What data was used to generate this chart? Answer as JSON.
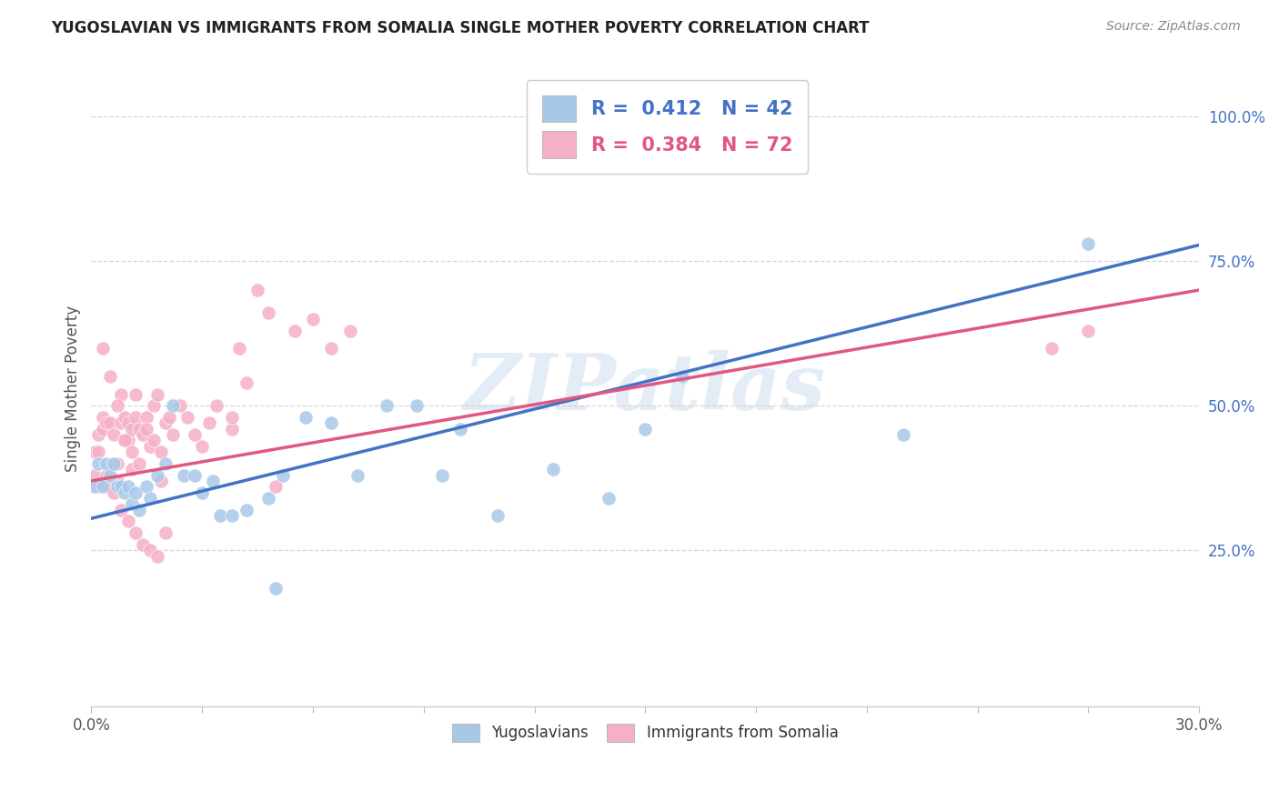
{
  "title": "YUGOSLAVIAN VS IMMIGRANTS FROM SOMALIA SINGLE MOTHER POVERTY CORRELATION CHART",
  "source": "Source: ZipAtlas.com",
  "ylabel": "Single Mother Poverty",
  "legend_label1": "Yugoslavians",
  "legend_label2": "Immigrants from Somalia",
  "R1": 0.412,
  "N1": 42,
  "R2": 0.384,
  "N2": 72,
  "color1": "#a8c8e8",
  "color2": "#f5b0c8",
  "line_color1": "#4472c4",
  "line_color2": "#e05880",
  "watermark": "ZIPatlas",
  "xmin": 0.0,
  "xmax": 0.3,
  "ymin": -0.02,
  "ymax": 1.08,
  "yugoslav_x": [
    0.001,
    0.002,
    0.003,
    0.004,
    0.005,
    0.006,
    0.007,
    0.008,
    0.009,
    0.01,
    0.011,
    0.012,
    0.013,
    0.015,
    0.016,
    0.018,
    0.02,
    0.022,
    0.025,
    0.028,
    0.03,
    0.033,
    0.035,
    0.038,
    0.042,
    0.048,
    0.052,
    0.058,
    0.065,
    0.072,
    0.08,
    0.088,
    0.095,
    0.1,
    0.11,
    0.125,
    0.14,
    0.15,
    0.16,
    0.22,
    0.27,
    0.05
  ],
  "yugoslav_y": [
    0.36,
    0.4,
    0.36,
    0.4,
    0.38,
    0.4,
    0.36,
    0.36,
    0.35,
    0.36,
    0.33,
    0.35,
    0.32,
    0.36,
    0.34,
    0.38,
    0.4,
    0.5,
    0.38,
    0.38,
    0.35,
    0.37,
    0.31,
    0.31,
    0.32,
    0.34,
    0.38,
    0.48,
    0.47,
    0.38,
    0.5,
    0.5,
    0.38,
    0.46,
    0.31,
    0.39,
    0.34,
    0.46,
    0.55,
    0.45,
    0.78,
    0.185
  ],
  "somalia_x": [
    0.001,
    0.001,
    0.002,
    0.002,
    0.003,
    0.003,
    0.004,
    0.004,
    0.005,
    0.005,
    0.006,
    0.006,
    0.007,
    0.007,
    0.008,
    0.008,
    0.009,
    0.009,
    0.01,
    0.01,
    0.011,
    0.011,
    0.012,
    0.012,
    0.013,
    0.014,
    0.015,
    0.016,
    0.017,
    0.018,
    0.019,
    0.02,
    0.022,
    0.024,
    0.026,
    0.028,
    0.03,
    0.032,
    0.034,
    0.038,
    0.04,
    0.042,
    0.045,
    0.048,
    0.05,
    0.055,
    0.038,
    0.06,
    0.065,
    0.07,
    0.003,
    0.005,
    0.007,
    0.009,
    0.011,
    0.013,
    0.015,
    0.017,
    0.019,
    0.021,
    0.002,
    0.004,
    0.006,
    0.008,
    0.01,
    0.012,
    0.014,
    0.016,
    0.018,
    0.02,
    0.26,
    0.27
  ],
  "somalia_y": [
    0.38,
    0.42,
    0.36,
    0.45,
    0.46,
    0.48,
    0.36,
    0.47,
    0.36,
    0.47,
    0.36,
    0.45,
    0.4,
    0.37,
    0.47,
    0.52,
    0.44,
    0.48,
    0.44,
    0.47,
    0.39,
    0.46,
    0.52,
    0.48,
    0.46,
    0.45,
    0.48,
    0.43,
    0.5,
    0.52,
    0.37,
    0.47,
    0.45,
    0.5,
    0.48,
    0.45,
    0.43,
    0.47,
    0.5,
    0.46,
    0.6,
    0.54,
    0.7,
    0.66,
    0.36,
    0.63,
    0.48,
    0.65,
    0.6,
    0.63,
    0.6,
    0.55,
    0.5,
    0.44,
    0.42,
    0.4,
    0.46,
    0.44,
    0.42,
    0.48,
    0.42,
    0.38,
    0.35,
    0.32,
    0.3,
    0.28,
    0.26,
    0.25,
    0.24,
    0.28,
    0.6,
    0.63
  ]
}
